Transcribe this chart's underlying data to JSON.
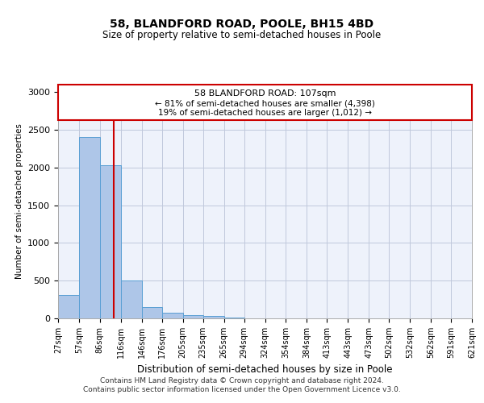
{
  "title1": "58, BLANDFORD ROAD, POOLE, BH15 4BD",
  "title2": "Size of property relative to semi-detached houses in Poole",
  "xlabel": "Distribution of semi-detached houses by size in Poole",
  "ylabel": "Number of semi-detached properties",
  "footer1": "Contains HM Land Registry data © Crown copyright and database right 2024.",
  "footer2": "Contains public sector information licensed under the Open Government Licence v3.0.",
  "annotation_line1": "58 BLANDFORD ROAD: 107sqm",
  "annotation_line2": "← 81% of semi-detached houses are smaller (4,398)",
  "annotation_line3": "19% of semi-detached houses are larger (1,012) →",
  "property_size": 107,
  "bar_color": "#aec6e8",
  "bar_edge_color": "#5a9fd4",
  "vline_color": "#cc0000",
  "annotation_box_color": "#cc0000",
  "background_color": "#eef2fb",
  "grid_color": "#c0c8dc",
  "bins": [
    27,
    57,
    87,
    117,
    147,
    176,
    206,
    235,
    265,
    294,
    324,
    354,
    384,
    413,
    443,
    473,
    502,
    532,
    562,
    591,
    621
  ],
  "bin_labels": [
    "27sqm",
    "57sqm",
    "86sqm",
    "116sqm",
    "146sqm",
    "176sqm",
    "205sqm",
    "235sqm",
    "265sqm",
    "294sqm",
    "324sqm",
    "354sqm",
    "384sqm",
    "413sqm",
    "443sqm",
    "473sqm",
    "502sqm",
    "532sqm",
    "562sqm",
    "591sqm",
    "621sqm"
  ],
  "counts": [
    305,
    2410,
    2030,
    500,
    148,
    72,
    45,
    30,
    15,
    5,
    2,
    1,
    0,
    0,
    0,
    0,
    0,
    0,
    0,
    0
  ],
  "ylim": [
    0,
    3100
  ],
  "yticks": [
    0,
    500,
    1000,
    1500,
    2000,
    2500,
    3000
  ]
}
